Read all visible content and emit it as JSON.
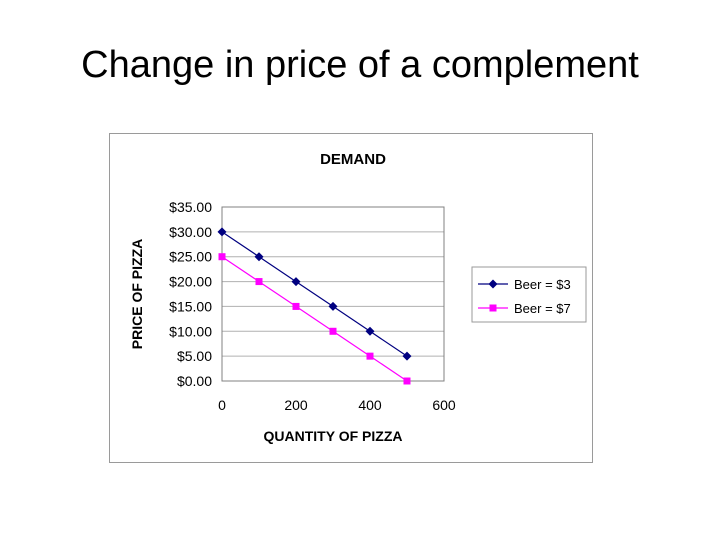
{
  "slide": {
    "title": "Change in price of a complement"
  },
  "chart_data": {
    "type": "line",
    "title": "DEMAND",
    "xlabel": "QUANTITY OF PIZZA",
    "ylabel": "PRICE OF PIZZA",
    "xlim": [
      0,
      600
    ],
    "ylim": [
      0,
      35
    ],
    "x_ticks": [
      0,
      200,
      400,
      600
    ],
    "x_tick_labels": [
      "0",
      "200",
      "400",
      "600"
    ],
    "y_ticks": [
      0,
      5,
      10,
      15,
      20,
      25,
      30,
      35
    ],
    "y_tick_labels": [
      "$0.00",
      "$5.00",
      "$10.00",
      "$15.00",
      "$20.00",
      "$25.00",
      "$30.00",
      "$35.00"
    ],
    "grid": "horizontal",
    "legend_position": "right",
    "series": [
      {
        "name": "Beer = $3",
        "color": "#000080",
        "marker": "diamond",
        "points": [
          [
            0,
            30
          ],
          [
            100,
            25
          ],
          [
            200,
            20
          ],
          [
            300,
            15
          ],
          [
            400,
            10
          ],
          [
            500,
            5
          ]
        ]
      },
      {
        "name": "Beer = $7",
        "color": "#ff00ff",
        "marker": "square",
        "points": [
          [
            0,
            25
          ],
          [
            100,
            20
          ],
          [
            200,
            15
          ],
          [
            300,
            10
          ],
          [
            400,
            5
          ],
          [
            500,
            0
          ]
        ]
      }
    ]
  }
}
